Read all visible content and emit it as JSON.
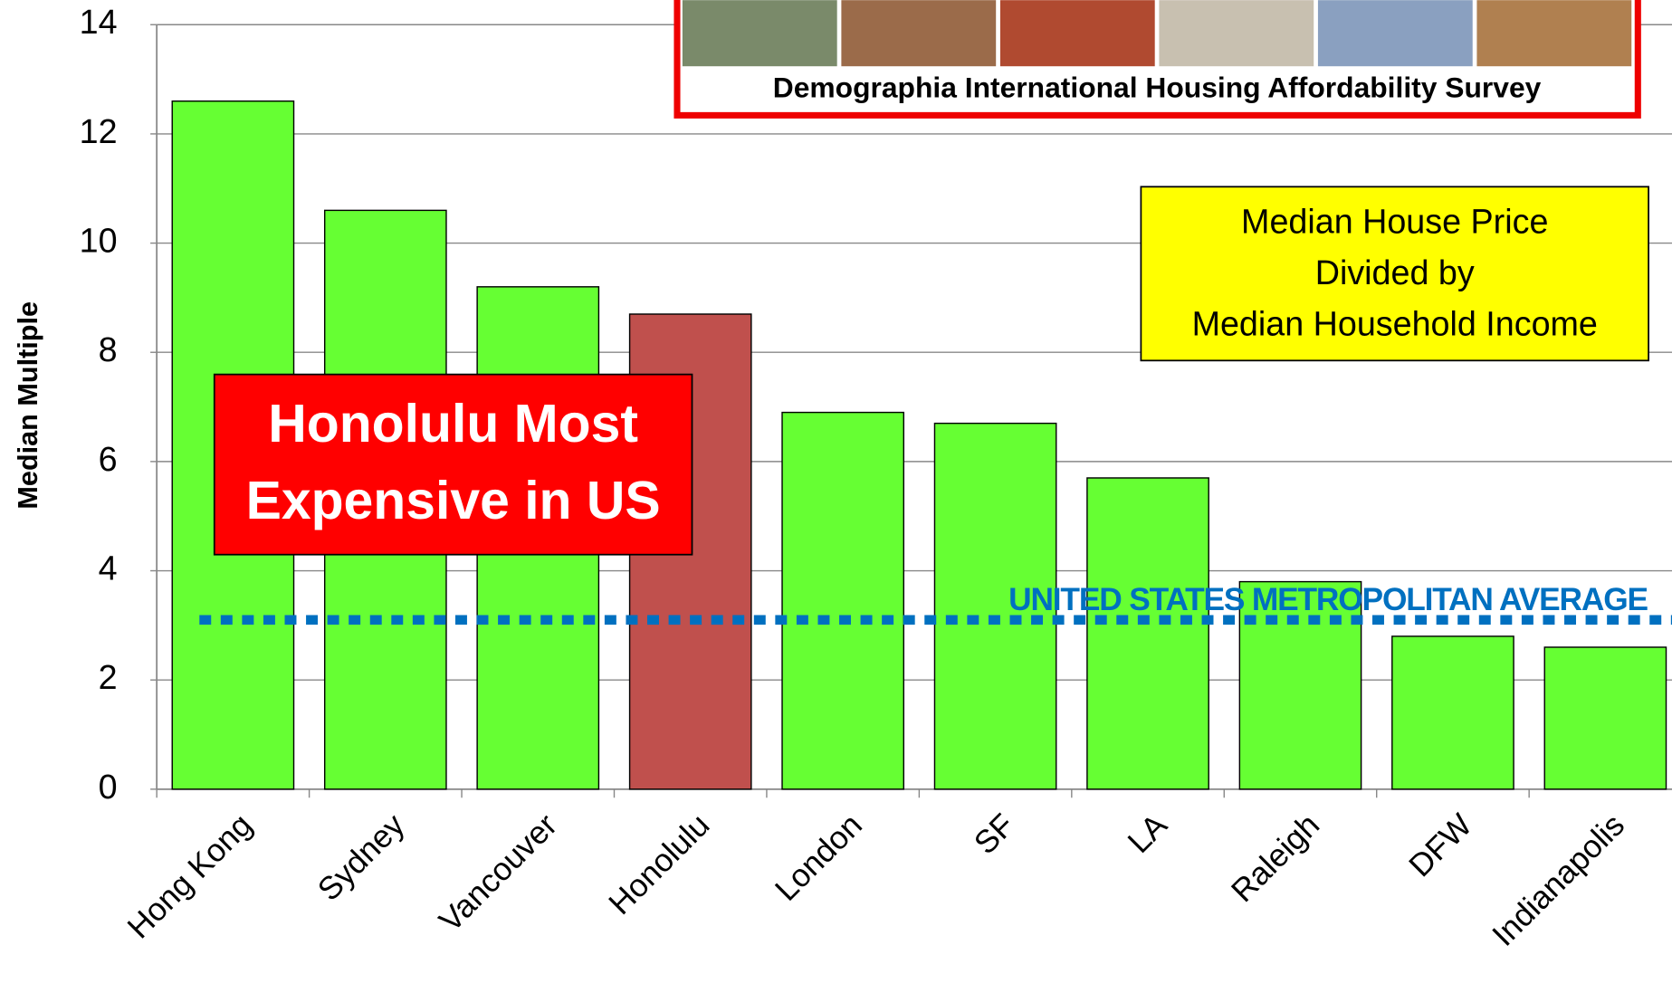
{
  "chart_data": {
    "type": "bar",
    "y_label": "Median Multiple",
    "categories": [
      "Hong Kong",
      "Sydney",
      "Vancouver",
      "Honolulu",
      "London",
      "SF",
      "LA",
      "Raleigh",
      "DFW",
      "Indianapolis"
    ],
    "values": [
      12.6,
      10.6,
      9.2,
      8.7,
      6.9,
      6.7,
      5.7,
      3.8,
      2.8,
      2.6
    ],
    "colors": [
      "#66ff33",
      "#66ff33",
      "#66ff33",
      "#c0504d",
      "#66ff33",
      "#66ff33",
      "#66ff33",
      "#66ff33",
      "#66ff33",
      "#66ff33"
    ],
    "ylim": [
      0,
      14
    ],
    "yticks": [
      0,
      2,
      4,
      6,
      8,
      10,
      12,
      14
    ],
    "grid": true,
    "average": {
      "label": "UNITED STATES METROPOLITAN AVERAGE",
      "value": 3.1,
      "color": "#0070c0"
    },
    "banner": "Demographia International Housing Affordability Survey",
    "callout": [
      "Honolulu Most",
      "Expensive in US"
    ],
    "definition": [
      "Median House Price",
      "Divided by",
      "Median Household Income"
    ]
  }
}
